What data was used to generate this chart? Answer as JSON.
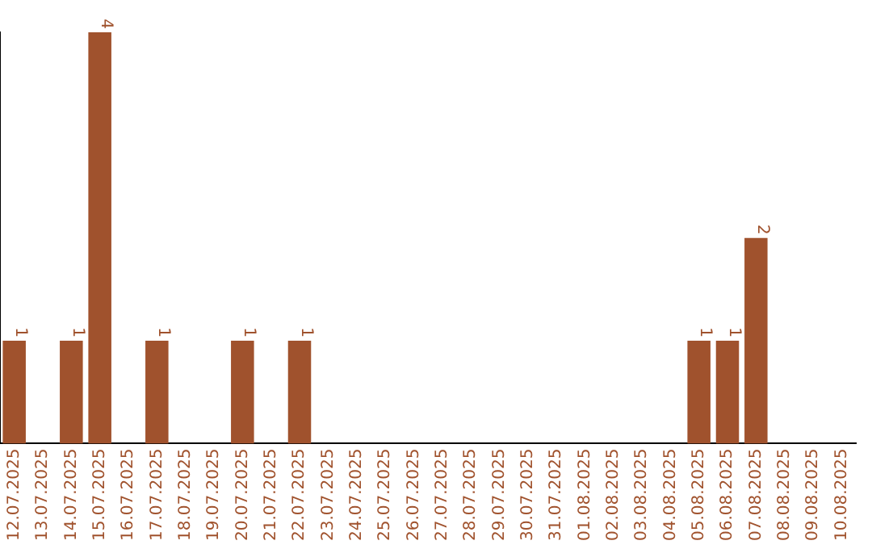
{
  "chart_data": {
    "type": "bar",
    "categories": [
      "12.07.2025",
      "13.07.2025",
      "14.07.2025",
      "15.07.2025",
      "16.07.2025",
      "17.07.2025",
      "18.07.2025",
      "19.07.2025",
      "20.07.2025",
      "21.07.2025",
      "22.07.2025",
      "23.07.2025",
      "24.07.2025",
      "25.07.2025",
      "26.07.2025",
      "27.07.2025",
      "28.07.2025",
      "29.07.2025",
      "30.07.2025",
      "31.07.2025",
      "01.08.2025",
      "02.08.2025",
      "03.08.2025",
      "04.08.2025",
      "05.08.2025",
      "06.08.2025",
      "07.08.2025",
      "08.08.2025",
      "09.08.2025",
      "10.08.2025"
    ],
    "values": [
      1,
      0,
      1,
      4,
      0,
      1,
      0,
      0,
      1,
      0,
      1,
      0,
      0,
      0,
      0,
      0,
      0,
      0,
      0,
      0,
      0,
      0,
      0,
      0,
      1,
      1,
      2,
      0,
      0,
      0
    ],
    "value_labels": [
      "1",
      null,
      "1",
      "4",
      null,
      "1",
      null,
      null,
      "1",
      null,
      "1",
      null,
      null,
      null,
      null,
      null,
      null,
      null,
      null,
      null,
      null,
      null,
      null,
      null,
      "1",
      "1",
      "2",
      null,
      null,
      null
    ],
    "color": "#a0522d",
    "grid": false,
    "legend": false
  }
}
